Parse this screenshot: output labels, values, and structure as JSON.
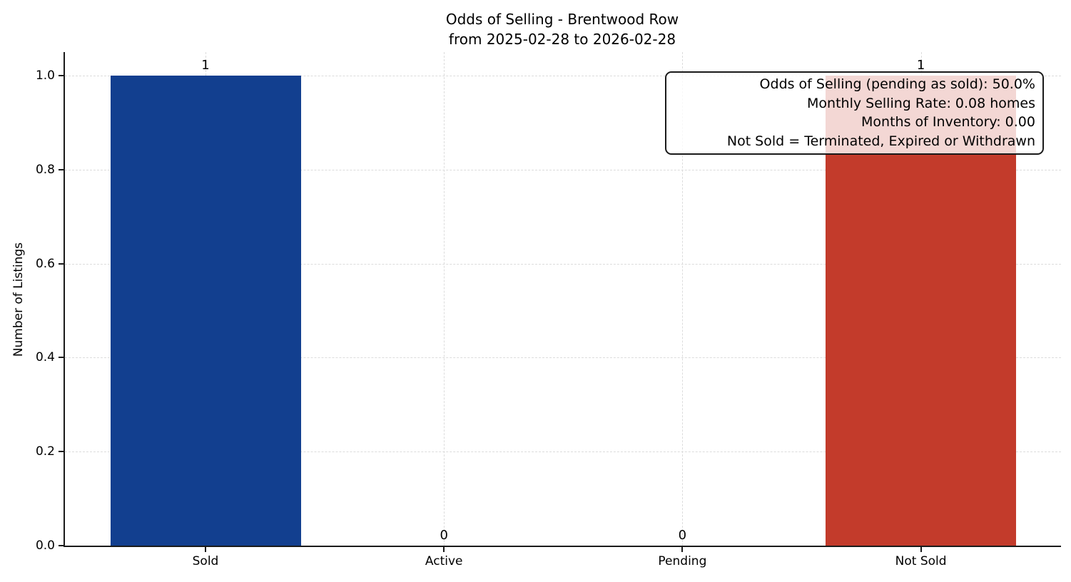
{
  "chart_data": {
    "type": "bar",
    "title": "Odds of Selling - Brentwood Row",
    "subtitle": "from 2025-02-28 to 2026-02-28",
    "xlabel": "",
    "ylabel": "Number of Listings",
    "categories": [
      "Sold",
      "Active",
      "Pending",
      "Not Sold"
    ],
    "values": [
      1,
      0,
      0,
      1
    ],
    "value_labels": [
      "1",
      "0",
      "0",
      "1"
    ],
    "bar_colors": [
      "#123f8f",
      null,
      null,
      "#c33b2b"
    ],
    "yticks": [
      0.0,
      0.2,
      0.4,
      0.6,
      0.8,
      1.0
    ],
    "ytick_labels": [
      "0.0",
      "0.2",
      "0.4",
      "0.6",
      "0.8",
      "1.0"
    ],
    "ylim": [
      0,
      1.05
    ],
    "grid": "dashed both axes",
    "legend": "none",
    "annotation": {
      "align": "right",
      "lines": [
        "Odds of Selling (pending as sold): 50.0%",
        "Monthly Selling Rate: 0.08 homes",
        "Months of Inventory: 0.00",
        "Not Sold = Terminated, Expired or Withdrawn"
      ]
    }
  }
}
